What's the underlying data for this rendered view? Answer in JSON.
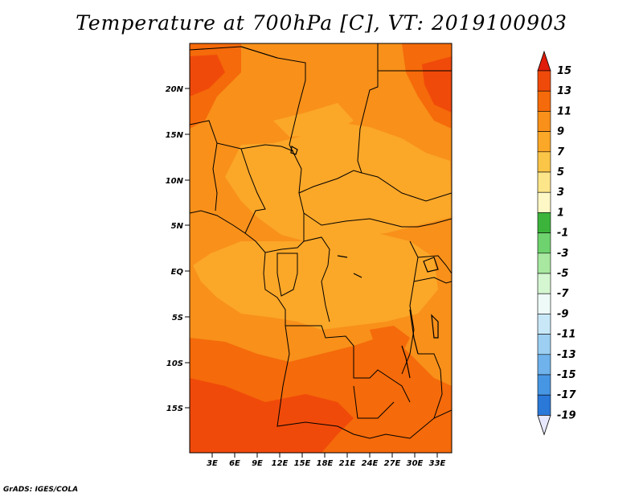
{
  "map": {
    "title": "Temperature at 700hPa [C], VT: 2019100903",
    "credit": "GrADS: IGES/COLA",
    "lat_labels": [
      "20N",
      "15N",
      "10N",
      "5N",
      "EQ",
      "5S",
      "10S",
      "15S"
    ],
    "lon_labels": [
      "3E",
      "6E",
      "9E",
      "12E",
      "15E",
      "18E",
      "21E",
      "24E",
      "27E",
      "30E",
      "33E"
    ],
    "variable": "Temperature at 700hPa",
    "units": "C",
    "valid_time": "2019100903"
  },
  "colorbar": {
    "labels": [
      "15",
      "13",
      "11",
      "9",
      "7",
      "5",
      "3",
      "1",
      "-1",
      "-3",
      "-5",
      "-7",
      "-9",
      "-11",
      "-13",
      "-15",
      "-17",
      "-19"
    ],
    "colors": [
      "#e8320a",
      "#f04a0a",
      "#f56a0a",
      "#f8901a",
      "#fba728",
      "#fbc548",
      "#fde68a",
      "#fef8c6",
      "#3cb43c",
      "#6ed26e",
      "#a8e8a0",
      "#d4f6d0",
      "#eefaf8",
      "#c8e8f8",
      "#9ccff2",
      "#6fb2ec",
      "#4796e4",
      "#2a78d8",
      "#1b5cc8",
      "#1040a8",
      "#0a1a78"
    ],
    "top_arrow_color": "#e01c0a",
    "bottom_arrow_color": "#e8e8ff"
  },
  "field_colors": {
    "warm_13_15": "#f04a0a",
    "warm_11_13": "#f56a0a",
    "warm_9_11": "#f8901a",
    "warm_7_9": "#fba728",
    "warm_5_7": "#fbc548"
  }
}
